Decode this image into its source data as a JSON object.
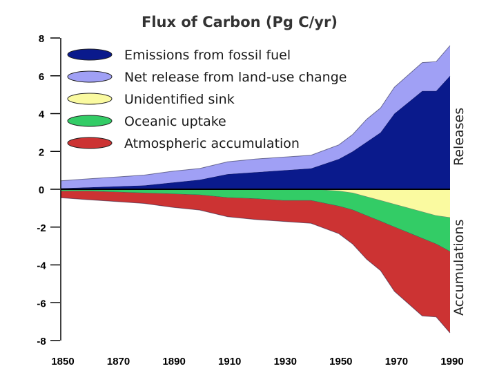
{
  "chart_data": {
    "type": "area",
    "title": "Flux of Carbon (Pg C/yr)",
    "xlabel": "",
    "ylabel": "",
    "xlim": [
      1850,
      1990
    ],
    "ylim": [
      -8,
      8
    ],
    "x_ticks": [
      1850,
      1870,
      1890,
      1910,
      1930,
      1950,
      1970,
      1990
    ],
    "y_ticks": [
      8,
      6,
      4,
      2,
      0,
      -2,
      -4,
      -6,
      -8
    ],
    "release_label": "Releases",
    "accumulation_label": "Accumulations",
    "x": [
      1850,
      1860,
      1870,
      1880,
      1890,
      1900,
      1910,
      1920,
      1930,
      1940,
      1950,
      1955,
      1960,
      1965,
      1970,
      1975,
      1980,
      1985,
      1990
    ],
    "series": [
      {
        "name": "Emissions from fossil fuel",
        "color": "#0a1a8c",
        "stack": "releases",
        "values": [
          0.05,
          0.1,
          0.15,
          0.2,
          0.35,
          0.5,
          0.8,
          0.9,
          1.0,
          1.1,
          1.6,
          2.0,
          2.5,
          3.0,
          4.0,
          4.6,
          5.2,
          5.2,
          6.0
        ]
      },
      {
        "name": "Net release from land-use change",
        "color": "#a0a0f5",
        "stack": "releases",
        "values": [
          0.4,
          0.45,
          0.5,
          0.55,
          0.6,
          0.6,
          0.65,
          0.7,
          0.7,
          0.7,
          0.75,
          0.9,
          1.2,
          1.3,
          1.4,
          1.45,
          1.5,
          1.55,
          1.6
        ]
      },
      {
        "name": "Unidentified sink",
        "color": "#fafaa0",
        "stack": "accumulations",
        "values": [
          0.0,
          0.0,
          0.0,
          0.0,
          0.0,
          0.0,
          0.0,
          0.0,
          0.0,
          0.0,
          0.1,
          0.2,
          0.4,
          0.6,
          0.8,
          1.0,
          1.2,
          1.4,
          1.5
        ]
      },
      {
        "name": "Oceanic uptake",
        "color": "#33cc66",
        "stack": "accumulations",
        "values": [
          0.1,
          0.1,
          0.15,
          0.2,
          0.25,
          0.3,
          0.45,
          0.5,
          0.6,
          0.6,
          0.8,
          0.9,
          1.0,
          1.1,
          1.2,
          1.3,
          1.4,
          1.5,
          1.8
        ]
      },
      {
        "name": "Atmospheric accumulation",
        "color": "#cc3333",
        "stack": "accumulations",
        "values": [
          0.35,
          0.45,
          0.5,
          0.55,
          0.7,
          0.8,
          1.0,
          1.1,
          1.1,
          1.2,
          1.45,
          1.8,
          2.3,
          2.6,
          3.4,
          3.75,
          4.1,
          3.85,
          4.3
        ]
      }
    ]
  }
}
